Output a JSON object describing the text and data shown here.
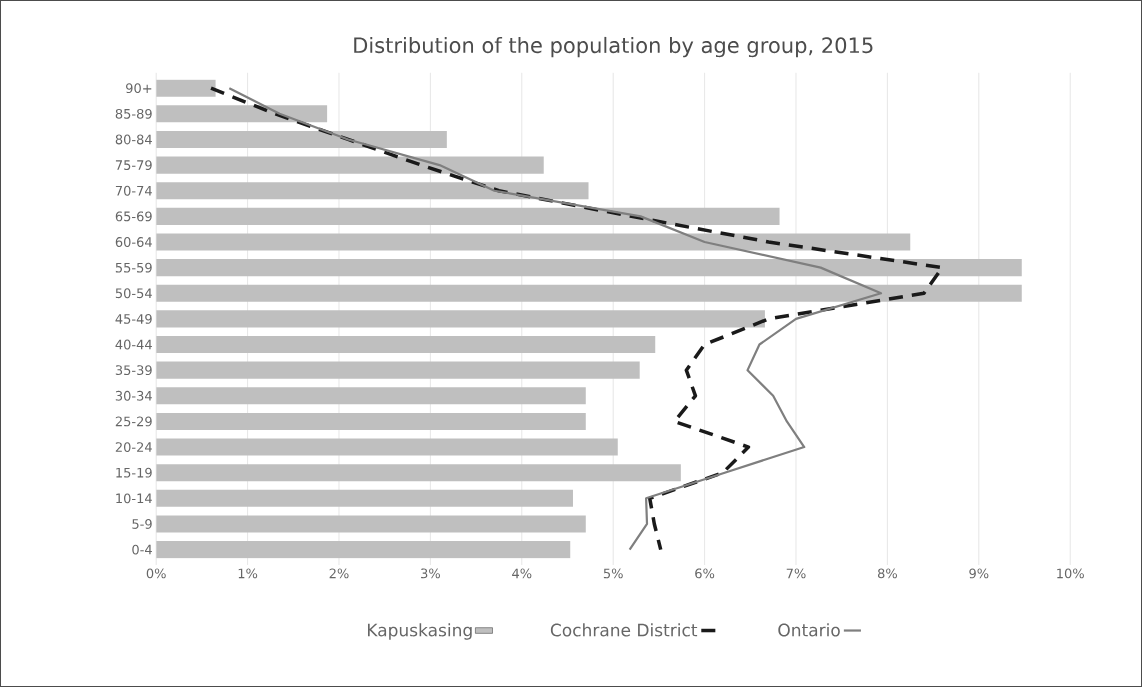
{
  "chart_data": {
    "type": "bar",
    "orientation": "horizontal",
    "title": "Distribution of the population by age group, 2015",
    "categories": [
      "90+",
      "85-89",
      "80-84",
      "75-79",
      "70-74",
      "65-69",
      "60-64",
      "55-59",
      "50-54",
      "45-49",
      "40-44",
      "35-39",
      "30-34",
      "25-29",
      "20-24",
      "15-19",
      "10-14",
      "5-9",
      "0-4"
    ],
    "series": [
      {
        "name": "Kapuskasing",
        "color": "#bfbfbf",
        "values": [
          0.65,
          1.87,
          3.18,
          4.24,
          4.73,
          6.82,
          8.25,
          9.47,
          9.47,
          6.66,
          5.46,
          5.29,
          4.7,
          4.7,
          5.05,
          5.74,
          4.56,
          4.7,
          4.53
        ]
      },
      {
        "name": "Cochrane District",
        "type": "line",
        "line_style": "dashed",
        "color": "#1a1a1a",
        "values": [
          0.6,
          1.3,
          2.1,
          2.9,
          3.75,
          5.2,
          6.7,
          8.6,
          8.4,
          6.7,
          6.0,
          5.8,
          5.9,
          5.67,
          6.48,
          6.2,
          5.4,
          5.45,
          5.52
        ]
      },
      {
        "name": "Ontario",
        "type": "line",
        "line_style": "solid",
        "color": "#7f7f7f",
        "values": [
          0.8,
          1.35,
          2.1,
          3.1,
          3.7,
          5.3,
          6.0,
          7.27,
          7.93,
          7.0,
          6.6,
          6.47,
          6.75,
          6.9,
          7.09,
          6.22,
          5.36,
          5.37,
          5.18
        ]
      }
    ],
    "xlim": [
      0,
      10
    ],
    "xticks": [
      {
        "value": 0,
        "label": "0%"
      },
      {
        "value": 1,
        "label": "1%"
      },
      {
        "value": 2,
        "label": "2%"
      },
      {
        "value": 3,
        "label": "3%"
      },
      {
        "value": 4,
        "label": "4%"
      },
      {
        "value": 5,
        "label": "5%"
      },
      {
        "value": 6,
        "label": "6%"
      },
      {
        "value": 7,
        "label": "7%"
      },
      {
        "value": 8,
        "label": "8%"
      },
      {
        "value": 9,
        "label": "9%"
      },
      {
        "value": 10,
        "label": "10%"
      }
    ],
    "grid": "x",
    "legend": "bottom"
  }
}
